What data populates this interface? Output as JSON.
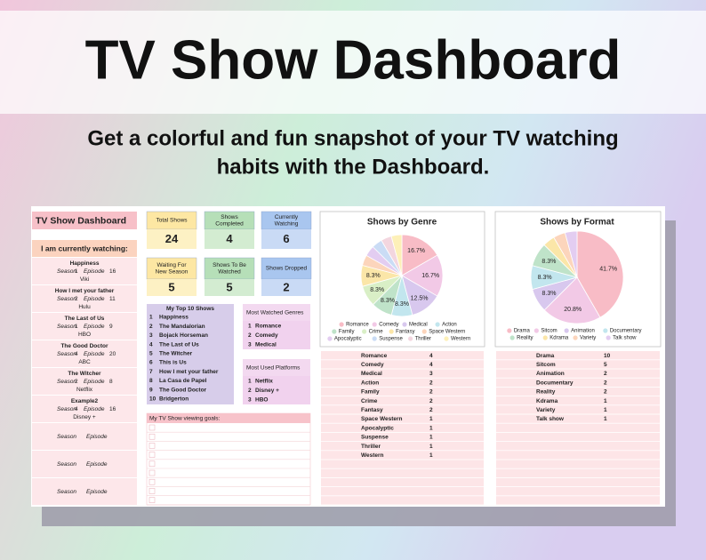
{
  "header": {
    "title": "TV Show Dashboard",
    "subtitle": [
      "Get a colorful and fun snapshot of your TV watching",
      "habits with the Dashboard."
    ]
  },
  "dashboard": {
    "title": "TV Show Dashboard",
    "watching": {
      "heading": "I am currently watching:",
      "season_label": "Season",
      "episode_label": "Episode",
      "shows": [
        {
          "name": "Happiness",
          "season": 1,
          "episode": 16,
          "platform": "Viki"
        },
        {
          "name": "How I met your father",
          "season": 2,
          "episode": 11,
          "platform": "Hulu"
        },
        {
          "name": "The Last of Us",
          "season": 1,
          "episode": 9,
          "platform": "HBO"
        },
        {
          "name": "The Good Doctor",
          "season": 4,
          "episode": 20,
          "platform": "ABC"
        },
        {
          "name": "The Witcher",
          "season": 2,
          "episode": 8,
          "platform": "Netflix"
        },
        {
          "name": "Example2",
          "season": 4,
          "episode": 16,
          "platform": "Disney +"
        }
      ]
    },
    "stats": [
      {
        "label": [
          "Total Shows"
        ],
        "value": 24
      },
      {
        "label": [
          "Shows",
          "Completed"
        ],
        "value": 4
      },
      {
        "label": [
          "Currently",
          "Watching"
        ],
        "value": 6
      },
      {
        "label": [
          "Waiting For",
          "New Season"
        ],
        "value": 5
      },
      {
        "label": [
          "Shows To Be",
          "Watched"
        ],
        "value": 5
      },
      {
        "label": [
          "Shows Dropped"
        ],
        "value": 2
      }
    ],
    "top10": {
      "heading": "My Top 10 Shows",
      "items": [
        {
          "rank": 1,
          "name": "Happiness"
        },
        {
          "rank": 2,
          "name": "The Mandalorian"
        },
        {
          "rank": 3,
          "name": "Bojack Horseman"
        },
        {
          "rank": 4,
          "name": "The Last of Us"
        },
        {
          "rank": 5,
          "name": "The Witcher"
        },
        {
          "rank": 6,
          "name": "This is Us"
        },
        {
          "rank": 7,
          "name": "How I met your father"
        },
        {
          "rank": 8,
          "name": "La Casa de Papel"
        },
        {
          "rank": 9,
          "name": "The Good Doctor"
        },
        {
          "rank": 10,
          "name": "Bridgerton"
        }
      ]
    },
    "top_genres": {
      "heading": "Most Watched Genres",
      "items": [
        {
          "rank": 1,
          "name": "Romance"
        },
        {
          "rank": 2,
          "name": "Comedy"
        },
        {
          "rank": 3,
          "name": "Medical"
        }
      ]
    },
    "top_platforms": {
      "heading": "Most Used Platforms",
      "items": [
        {
          "rank": 1,
          "name": "Netflix"
        },
        {
          "rank": 2,
          "name": "Disney +"
        },
        {
          "rank": 3,
          "name": "HBO"
        }
      ]
    },
    "goals": {
      "heading": "My TV Show viewing goals:"
    },
    "genre_counts": [
      4,
      4,
      3,
      2,
      2,
      2,
      2,
      1,
      1,
      1,
      1,
      1
    ],
    "format_counts": [
      10,
      5,
      2,
      2,
      2,
      1,
      1,
      1
    ]
  },
  "chart_data": [
    {
      "type": "pie",
      "title": "Shows by Genre",
      "categories": [
        "Romance",
        "Comedy",
        "Medical",
        "Action",
        "Family",
        "Crime",
        "Fantasy",
        "Space Western",
        "Apocalyptic",
        "Suspense",
        "Thriller",
        "Western"
      ],
      "values": [
        16.7,
        16.7,
        12.5,
        8.3,
        8.3,
        8.3,
        8.3,
        4.2,
        4.2,
        4.2,
        4.2,
        4.2
      ],
      "value_labels": [
        "16.7%",
        "16.7%",
        "12.5%",
        "8.3%",
        "8.3%",
        "8.3%",
        "8.3%",
        null,
        null,
        null,
        null,
        null
      ],
      "colors": [
        "#f8bcc6",
        "#f2c9e6",
        "#d8c8ee",
        "#c2e6ee",
        "#bfe3c9",
        "#d9efc6",
        "#fbe6a8",
        "#fcd5bc",
        "#e3cdf1",
        "#cadcf5",
        "#f3d6df",
        "#fdf0b8"
      ]
    },
    {
      "type": "pie",
      "title": "Shows by Format",
      "categories": [
        "Drama",
        "Sitcom",
        "Animation",
        "Documentary",
        "Reality",
        "Kdrama",
        "Variety",
        "Talk show"
      ],
      "values": [
        41.7,
        20.8,
        8.3,
        8.3,
        8.3,
        4.2,
        4.2,
        4.2
      ],
      "value_labels": [
        "41.7%",
        "20.8%",
        "8.3%",
        "8.3%",
        "8.3%",
        null,
        null,
        null
      ],
      "colors": [
        "#f8bcc6",
        "#f2c9e6",
        "#d8c8ee",
        "#c2e6ee",
        "#bfe3c9",
        "#fbe6a8",
        "#fcd5bc",
        "#e3cdf1"
      ]
    }
  ]
}
